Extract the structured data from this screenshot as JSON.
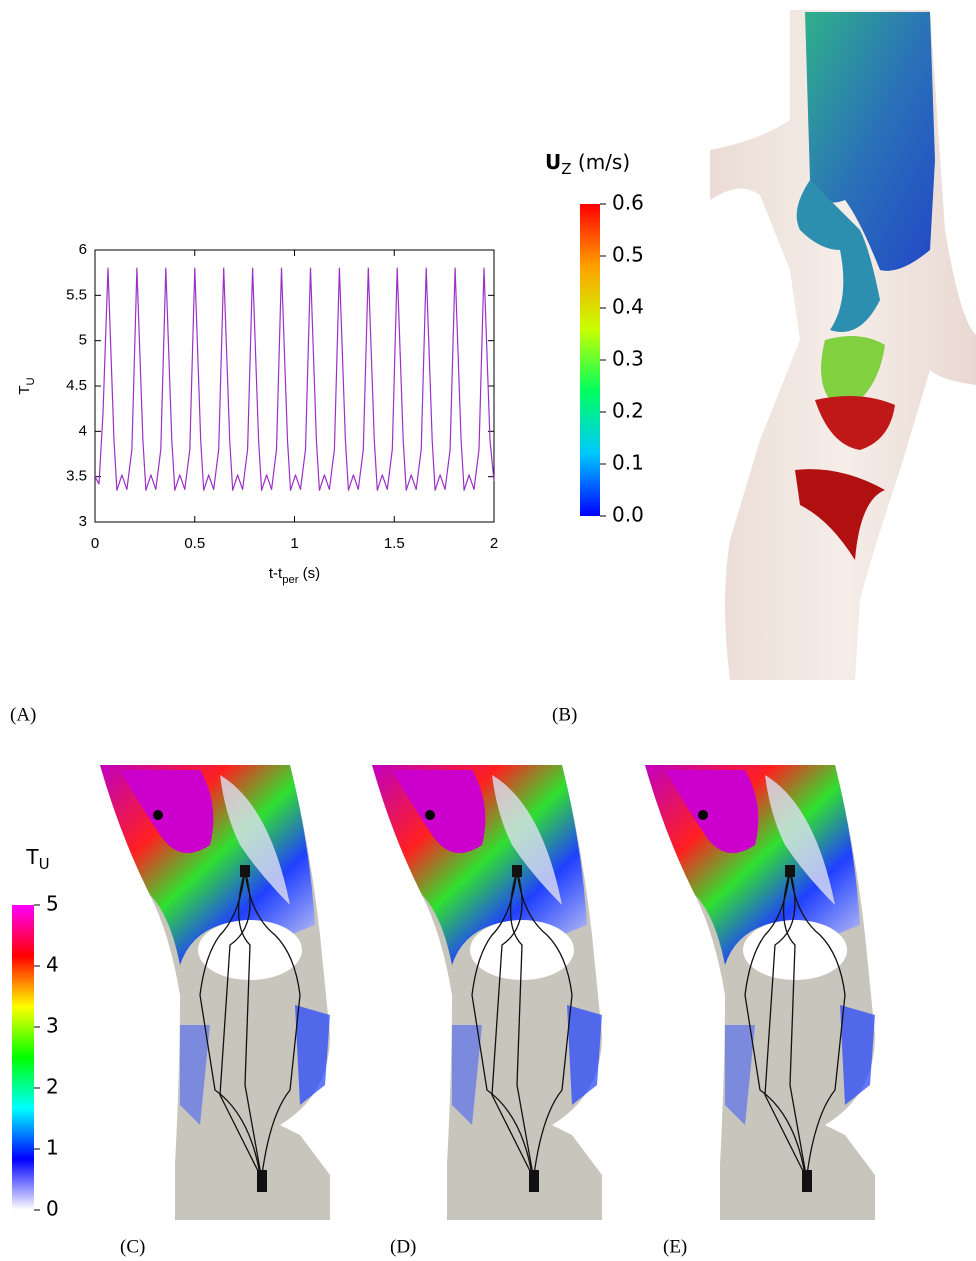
{
  "chart_data": [
    {
      "type": "line",
      "color": "#9b30c8",
      "x_label": {
        "main": "t-t",
        "sub": "per",
        "tail": " (s)"
      },
      "y_label": {
        "main": "T",
        "sub": "U"
      },
      "xlim": [
        0,
        2
      ],
      "xticks": [
        0,
        0.5,
        1,
        1.5,
        2
      ],
      "ylim": [
        3,
        6
      ],
      "yticks": [
        3,
        3.5,
        4,
        4.5,
        5,
        5.5,
        6
      ],
      "x": [
        0,
        0.02,
        0.04,
        0.065,
        0.095,
        0.11,
        0.135,
        0.16,
        0.185,
        0.21,
        0.24,
        0.255,
        0.28,
        0.305,
        0.33,
        0.355,
        0.385,
        0.4,
        0.425,
        0.45,
        0.475,
        0.5,
        0.53,
        0.545,
        0.57,
        0.595,
        0.62,
        0.645,
        0.675,
        0.69,
        0.715,
        0.74,
        0.765,
        0.79,
        0.82,
        0.835,
        0.86,
        0.885,
        0.91,
        0.935,
        0.965,
        0.98,
        1.005,
        1.03,
        1.055,
        1.08,
        1.11,
        1.125,
        1.15,
        1.175,
        1.2,
        1.225,
        1.255,
        1.27,
        1.295,
        1.32,
        1.345,
        1.37,
        1.4,
        1.415,
        1.44,
        1.465,
        1.49,
        1.515,
        1.545,
        1.56,
        1.585,
        1.61,
        1.635,
        1.66,
        1.69,
        1.705,
        1.73,
        1.755,
        1.78,
        1.805,
        1.835,
        1.85,
        1.875,
        1.9,
        1.925,
        1.95,
        1.98,
        2
      ],
      "values": [
        3.5,
        3.42,
        4.2,
        5.8,
        3.9,
        3.35,
        3.52,
        3.36,
        3.8,
        5.8,
        3.9,
        3.35,
        3.52,
        3.36,
        3.8,
        5.8,
        3.9,
        3.35,
        3.52,
        3.36,
        3.8,
        5.8,
        3.9,
        3.35,
        3.52,
        3.36,
        3.8,
        5.8,
        3.9,
        3.35,
        3.52,
        3.36,
        3.8,
        5.8,
        3.9,
        3.35,
        3.52,
        3.36,
        3.8,
        5.8,
        3.9,
        3.35,
        3.52,
        3.36,
        3.8,
        5.8,
        3.9,
        3.35,
        3.52,
        3.36,
        3.8,
        5.8,
        3.9,
        3.35,
        3.52,
        3.36,
        3.8,
        5.8,
        3.9,
        3.35,
        3.52,
        3.36,
        3.8,
        5.8,
        3.9,
        3.35,
        3.52,
        3.36,
        3.8,
        5.8,
        3.9,
        3.35,
        3.52,
        3.36,
        3.8,
        5.8,
        3.9,
        3.35,
        3.52,
        3.36,
        3.8,
        5.8,
        3.9,
        3.45
      ]
    },
    {
      "type": "colorbar",
      "title": {
        "main": "U",
        "sub": "Z",
        "tail": " (m/s)"
      },
      "ylim": [
        0,
        0.6
      ],
      "yticks": [
        {
          "value": 0,
          "label": "0.0"
        },
        0.1,
        0.2,
        0.3,
        0.4,
        0.5,
        0.6
      ],
      "colors": [
        "#0000ff",
        "#00c8ff",
        "#00ff60",
        "#c8ff00",
        "#ffa000",
        "#ff0000"
      ]
    },
    {
      "type": "colorbar",
      "title": {
        "main": "T",
        "sub": "U"
      },
      "ylim": [
        0,
        5
      ],
      "yticks": [
        0,
        1,
        2,
        3,
        4,
        5
      ],
      "colors": [
        "#ffffff",
        "#0000ff",
        "#00ffff",
        "#00ff00",
        "#ffff00",
        "#ff0000",
        "#ff00ff"
      ]
    }
  ],
  "panel_labels": [
    "(A)",
    "(B)",
    "(C)",
    "(D)",
    "(E)"
  ]
}
